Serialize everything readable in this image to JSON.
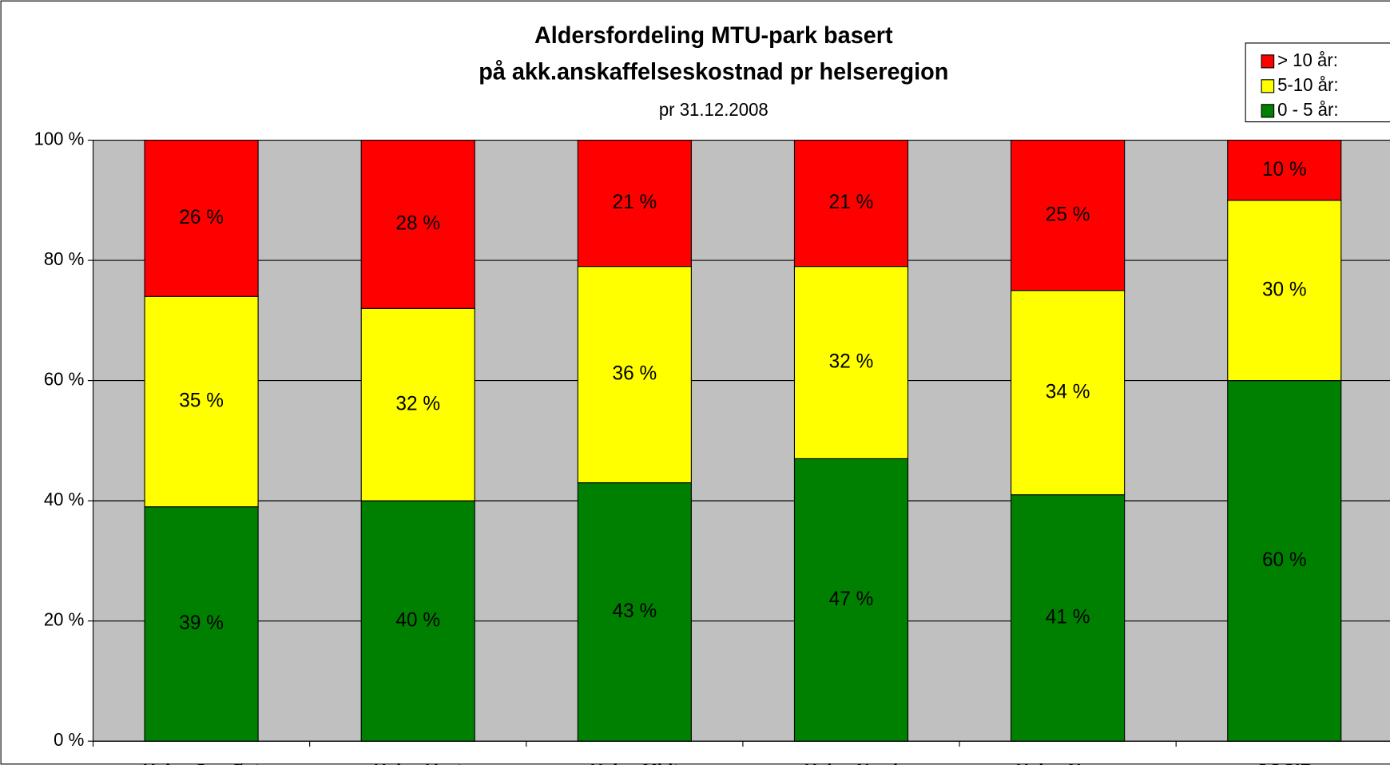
{
  "chart_data": {
    "type": "stacked_bar",
    "title": [
      "Aldersfordeling MTU-park basert",
      "på akk.anskaffelseskostnad pr helseregion"
    ],
    "subtitle": "pr 31.12.2008",
    "categories": [
      "Helse Sør-Øst",
      "Helse Vest",
      "Helse Midt",
      "Helse Nord",
      "Helse Norge",
      "COCIR"
    ],
    "series": [
      {
        "name": "0 - 5 år:",
        "color": "#008000",
        "values": [
          39,
          40,
          43,
          47,
          41,
          60
        ],
        "value_labels": [
          "39 %",
          "40 %",
          "43 %",
          "47 %",
          "41 %",
          "60 %"
        ]
      },
      {
        "name": "5-10 år:",
        "color": "#ffff00",
        "values": [
          35,
          32,
          36,
          32,
          34,
          30
        ],
        "value_labels": [
          "35 %",
          "32 %",
          "36 %",
          "32 %",
          "34 %",
          "30 %"
        ]
      },
      {
        "name": "> 10 år:",
        "color": "#ff0000",
        "values": [
          26,
          28,
          21,
          21,
          25,
          10
        ],
        "value_labels": [
          "26 %",
          "28 %",
          "21 %",
          "21 %",
          "25 %",
          "10 %"
        ]
      }
    ],
    "ylim": [
      0,
      100
    ],
    "yticks": [
      {
        "value": 0,
        "label": "0 %"
      },
      {
        "value": 20,
        "label": "20 %"
      },
      {
        "value": 40,
        "label": "40 %"
      },
      {
        "value": 60,
        "label": "60 %"
      },
      {
        "value": 80,
        "label": "80 %"
      },
      {
        "value": 100,
        "label": "100 %"
      }
    ],
    "grid": true,
    "plot_background": "#c0c0c0",
    "legend": "top-right"
  }
}
